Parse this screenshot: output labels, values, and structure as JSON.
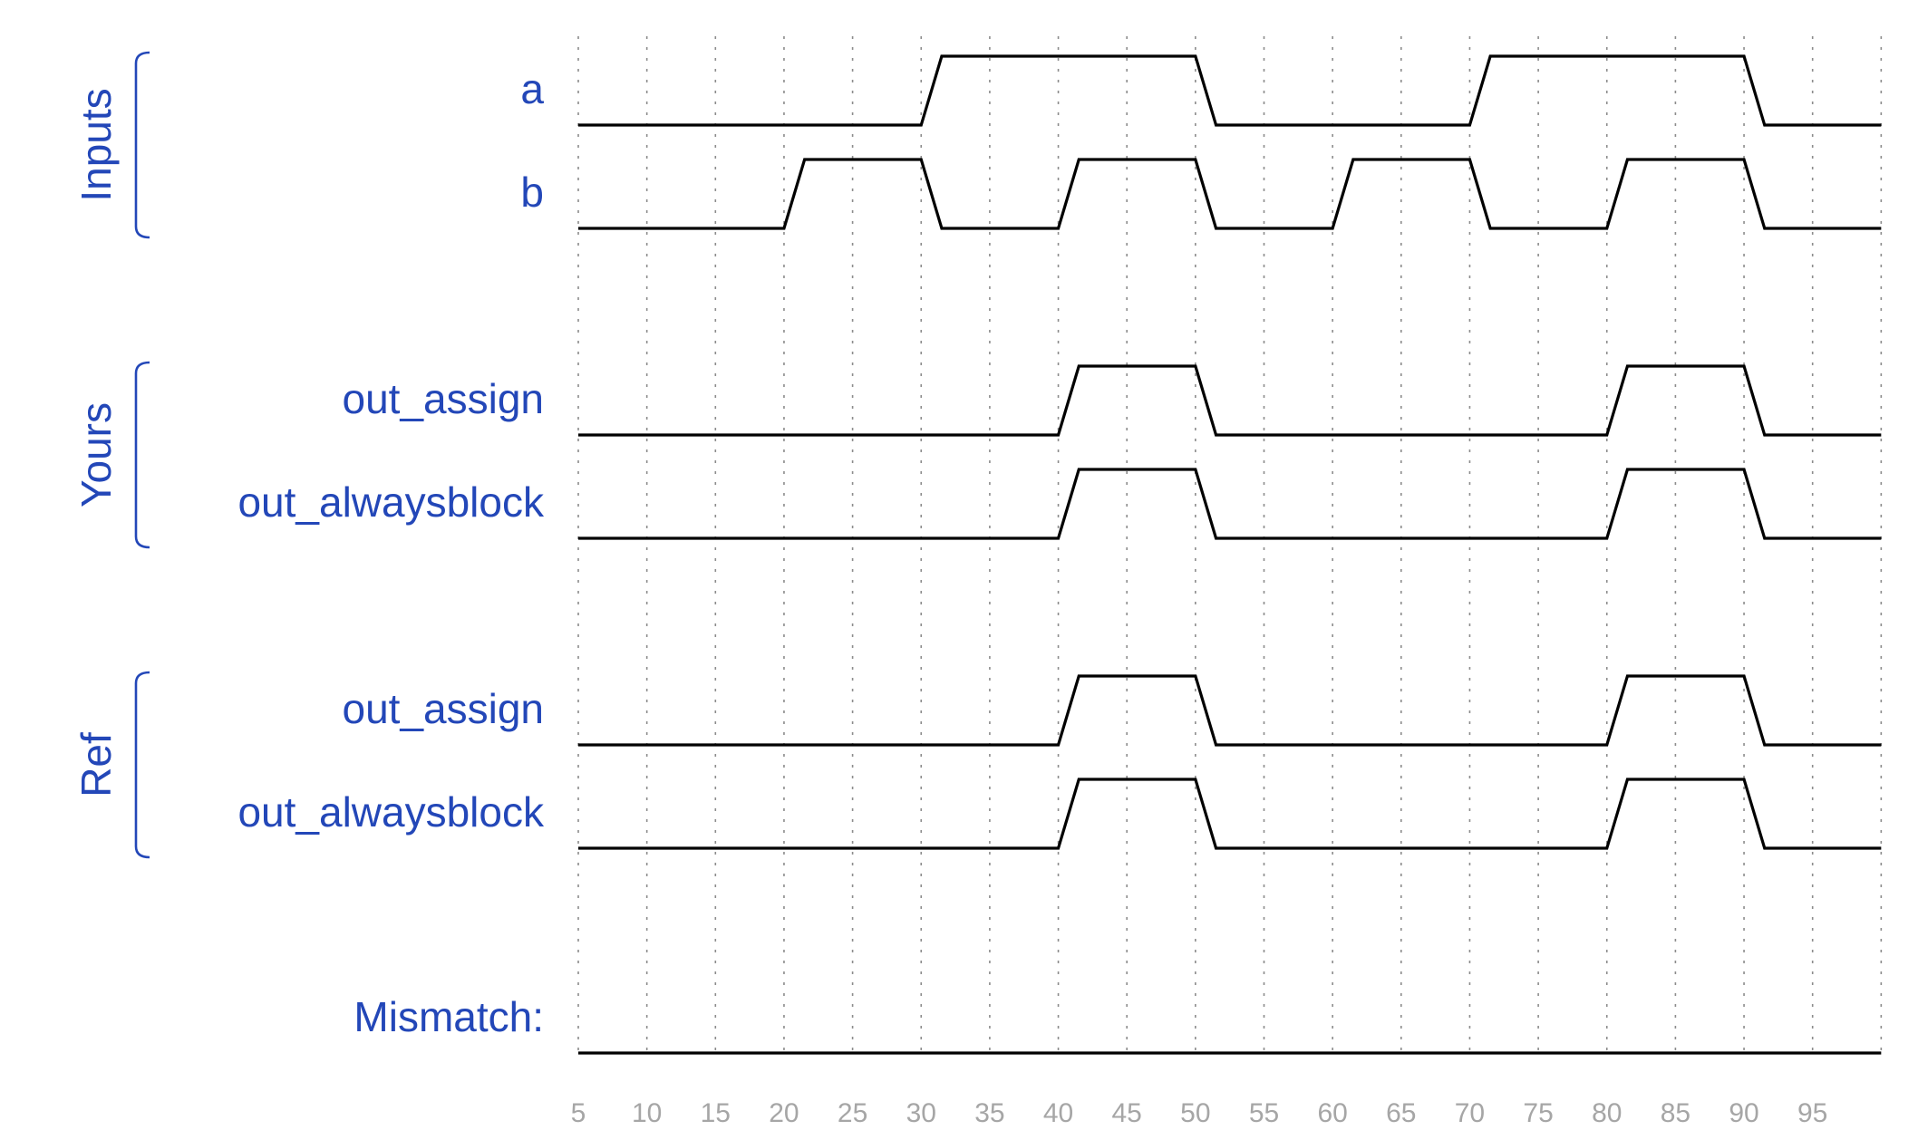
{
  "timeline": {
    "ticks": [
      5,
      10,
      15,
      20,
      25,
      30,
      35,
      40,
      45,
      50,
      55,
      60,
      65,
      70,
      75,
      80,
      85,
      90,
      95
    ],
    "range": [
      5,
      100
    ],
    "grid_step": 5,
    "transition_width": 1.5
  },
  "groups": [
    {
      "label": "Inputs",
      "signals": [
        {
          "label": "a",
          "initial": 0,
          "toggles": [
            30,
            50,
            70,
            90
          ]
        },
        {
          "label": "b",
          "initial": 0,
          "toggles": [
            20,
            30,
            40,
            50,
            60,
            70,
            80,
            90
          ]
        }
      ]
    },
    {
      "label": "Yours",
      "signals": [
        {
          "label": "out_assign",
          "initial": 0,
          "toggles": [
            40,
            50,
            80,
            90
          ]
        },
        {
          "label": "out_alwaysblock",
          "initial": 0,
          "toggles": [
            40,
            50,
            80,
            90
          ]
        }
      ]
    },
    {
      "label": "Ref",
      "signals": [
        {
          "label": "out_assign",
          "initial": 0,
          "toggles": [
            40,
            50,
            80,
            90
          ]
        },
        {
          "label": "out_alwaysblock",
          "initial": 0,
          "toggles": [
            40,
            50,
            80,
            90
          ]
        }
      ]
    }
  ],
  "mismatch": {
    "label": "Mismatch:",
    "initial": 0,
    "toggles": []
  },
  "colors": {
    "label": "#2347b8",
    "wave": "#000000",
    "tick": "#a6a6a6"
  }
}
